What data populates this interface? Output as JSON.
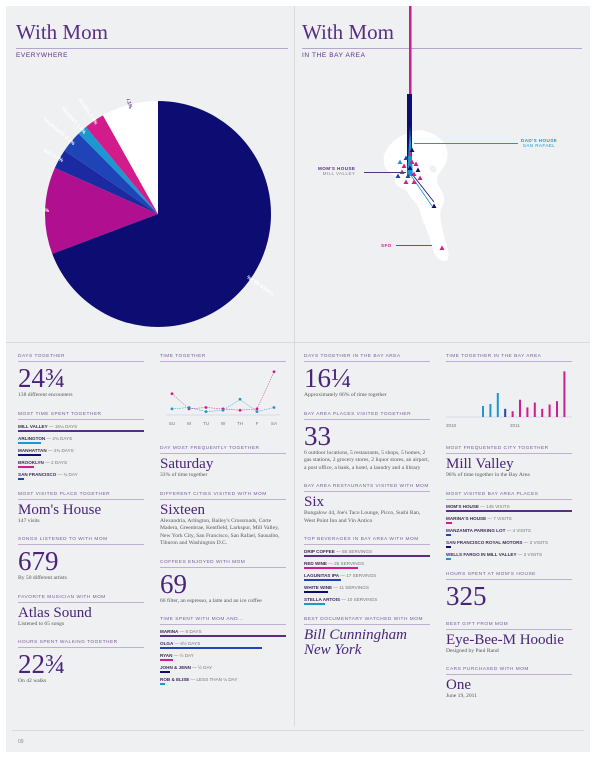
{
  "left": {
    "title": "With Mom",
    "subtitle": "EVERYWHERE"
  },
  "right": {
    "title": "With Mom",
    "subtitle": "IN THE BAY AREA"
  },
  "pie": [
    {
      "label": "OTHER HOMES 69.2%",
      "value": 69.2,
      "color": "#0c0c72"
    },
    {
      "label": "AT HOME 12.4%",
      "value": 12.4,
      "color": "#b00f8f"
    },
    {
      "label": "WALKING 2.8%",
      "value": 2.8,
      "color": "#1b2aa0"
    },
    {
      "label": "RESTAURANTS 3.1%",
      "value": 3.1,
      "color": "#1e44b8"
    },
    {
      "label": "TRANSIT 1.4%",
      "value": 1.4,
      "color": "#1d97cf"
    },
    {
      "label": "DRIVING 2.9%",
      "value": 2.9,
      "color": "#d21c8c"
    },
    {
      "label": "OTHER 8.1%",
      "value": 8.1,
      "color": "#ffffff"
    }
  ],
  "map": {
    "dads_house": {
      "label": "DAD'S HOUSE",
      "sub": "SAN RAFAEL"
    },
    "moms_house": {
      "label": "MOM'S HOUSE",
      "sub": "MILL VALLEY"
    },
    "sfo": "SFO"
  },
  "col1": {
    "days_label": "DAYS TOGETHER",
    "days_value": "24¾",
    "days_sub": "138 different encounters",
    "most_time_label": "MOST TIME SPENT TOGETHER",
    "most_time": [
      {
        "name": "MILL VALLEY",
        "rest": " — 15¼ DAYS",
        "pct": 1.0,
        "color": "#5b2e86"
      },
      {
        "name": "ARLINGTON",
        "rest": " — 2¾ DAYS",
        "pct": 0.18,
        "color": "#1d97cf"
      },
      {
        "name": "MANHATTAN",
        "rest": " — 2¾ DAYS",
        "pct": 0.18,
        "color": "#0c0c72"
      },
      {
        "name": "BROOKLYN",
        "rest": " — 2 DAYS",
        "pct": 0.13,
        "color": "#d21c8c"
      },
      {
        "name": "SAN FRANCISCO",
        "rest": " — ¾ DAY",
        "pct": 0.05,
        "color": "#1e44b8"
      }
    ],
    "place_label": "MOST VISITED PLACE TOGETHER",
    "place_value": "Mom's House",
    "place_sub": "147 visits",
    "songs_label": "SONGS LISTENED TO WITH MOM",
    "songs_value": "679",
    "songs_sub": "By 50 different artists",
    "musician_label": "FAVORITE MUSICIAN WITH MOM",
    "musician_value": "Atlas Sound",
    "musician_sub": "Listened to 65 songs",
    "walk_label": "HOURS SPENT WALKING TOGETHER",
    "walk_value": "22¾",
    "walk_sub": "On 42 walks"
  },
  "col2": {
    "time_label": "TIME TOGETHER",
    "chart_data": {
      "type": "line",
      "categories": [
        "SU",
        "M",
        "TU",
        "W",
        "TH",
        "F",
        "SA"
      ],
      "series": [
        {
          "values": [
            14,
            3,
            4,
            3,
            2,
            3,
            30
          ],
          "color": "#d21c8c"
        },
        {
          "values": [
            3,
            4,
            1,
            2,
            10,
            1,
            4
          ],
          "color": "#1d97cf"
        }
      ],
      "ylim": [
        0,
        32
      ]
    },
    "day_label": "DAY MOST FREQUENTLY TOGETHER",
    "day_value": "Saturday",
    "day_sub": "33% of time together",
    "cities_label": "DIFFERENT CITIES VISITED WITH MOM",
    "cities_value": "Sixteen",
    "cities_sub": "Alexandria, Arlington, Bailey's Crossroads, Corte Madera, Greenbrae, Kentfield, Larkspur, Mill Valley, New York City, San Francisco, San Rafael, Sausalito, Tiburon and Washington D.C.",
    "coffee_label": "COFFEES ENJOYED WITH MOM",
    "coffee_value": "69",
    "coffee_sub": "66 filter, an espresso, a latte and an ice coffee",
    "spent_label": "TIME SPENT WITH MOM AND...",
    "spent": [
      {
        "name": "MARINA",
        "rest": " — 8 DAYS",
        "pct": 1.0,
        "color": "#5b2e86"
      },
      {
        "name": "OLGA",
        "rest": " — 6½ DAYS",
        "pct": 0.81,
        "color": "#1e44b8"
      },
      {
        "name": "RYAN",
        "rest": " — ½ DAY",
        "pct": 0.1,
        "color": "#d21c8c"
      },
      {
        "name": "JOHN & JENN",
        "rest": " — ½ DAY",
        "pct": 0.08,
        "color": "#0c0c72"
      },
      {
        "name": "ROB & ELISE",
        "rest": " — LESS THAN ¼ DAY",
        "pct": 0.03,
        "color": "#1d97cf"
      }
    ]
  },
  "col3": {
    "days_label": "DAYS TOGETHER IN THE BAY AREA",
    "days_value": "16¼",
    "days_sub": "Approximately 66% of time together",
    "places_label": "BAY AREA PLACES VISITED TOGETHER",
    "places_value": "33",
    "places_sub": "6 outdoor locations, 5 restaurants, 5 shops, 5 homes, 2 gas stations, 2 grocery stores, 2 liquor stores, an airport, a post office, a bank, a hotel, a laundry and a library",
    "rest_label": "BAY AREA RESTAURANTS VISITED WITH MOM",
    "rest_value": "Six",
    "rest_sub": "Bungalow 44, Joe's Taco Lounge, Picco, Sushi Ran, West Point Inn and Vin Antico",
    "bev_label": "TOP BEVERAGES IN BAY AREA WITH MOM",
    "bev": [
      {
        "name": "DRIP COFFEE",
        "rest": " — 58 SERVINGS",
        "pct": 1.0,
        "color": "#5b2e86"
      },
      {
        "name": "RED WINE",
        "rest": " — 25 SERVINGS",
        "pct": 0.43,
        "color": "#d21c8c"
      },
      {
        "name": "LAGUNITAS IPA",
        "rest": " — 17 SERVINGS",
        "pct": 0.29,
        "color": "#1e44b8"
      },
      {
        "name": "WHITE WINE",
        "rest": " — 11 SERVINGS",
        "pct": 0.19,
        "color": "#0c0c72"
      },
      {
        "name": "STELLA ARTOIS",
        "rest": " — 10 SERVINGS",
        "pct": 0.17,
        "color": "#1d97cf"
      }
    ],
    "doc_label": "BEST DOCUMENTARY WATCHED WITH MOM",
    "doc_value": "Bill Cunningham New York"
  },
  "col4": {
    "time_label": "TIME TOGETHER IN THE BAY AREA",
    "bars": [
      {
        "v": 0.23,
        "c": "#1d97cf"
      },
      {
        "v": 0.27,
        "c": "#1d97cf"
      },
      {
        "v": 0.5,
        "c": "#1d97cf"
      },
      {
        "v": 0.17,
        "c": "#1e44b8"
      },
      {
        "v": 0.12,
        "c": "#d21c8c"
      },
      {
        "v": 0.36,
        "c": "#d21c8c"
      },
      {
        "v": 0.2,
        "c": "#d21c8c"
      },
      {
        "v": 0.3,
        "c": "#d21c8c"
      },
      {
        "v": 0.17,
        "c": "#d21c8c"
      },
      {
        "v": 0.26,
        "c": "#d21c8c"
      },
      {
        "v": 0.33,
        "c": "#d21c8c"
      },
      {
        "v": 0.95,
        "c": "#d21c8c"
      }
    ],
    "year1": "2010",
    "year2": "2011",
    "city_label": "MOST FREQUENTED CITY TOGETHER",
    "city_value": "Mill Valley",
    "city_sub": "96% of time together in the Bay Area",
    "places_label": "MOST VISITED BAY AREA PLACES",
    "places": [
      {
        "name": "MOM'S HOUSE",
        "rest": " — 145 VISITS",
        "pct": 1.0,
        "color": "#5b2e86"
      },
      {
        "name": "MARINA'S HOUSE",
        "rest": " — 7 VISITS",
        "pct": 0.05,
        "color": "#d21c8c"
      },
      {
        "name": "MANZANITA PARKING LOT",
        "rest": " — 4 VISITS",
        "pct": 0.03,
        "color": "#1e44b8"
      },
      {
        "name": "SAN FRANCISCO ROYAL MOTORS",
        "rest": " — 3 VISITS",
        "pct": 0.02,
        "color": "#0c0c72"
      },
      {
        "name": "WELLS FARGO IN MILL VALLEY",
        "rest": " — 3 VISITS",
        "pct": 0.02,
        "color": "#1d97cf"
      }
    ],
    "hours_label": "HOURS SPENT AT MOM'S HOUSE",
    "hours_value": "325",
    "gift_label": "BEST GIFT FROM MOM",
    "gift_value": "Eye-Bee-M Hoodie",
    "gift_sub": "Designed by Paul Rand",
    "cars_label": "CARS PURCHASED WITH MOM",
    "cars_value": "One",
    "cars_sub": "June 19, 2011"
  },
  "footer": "09"
}
